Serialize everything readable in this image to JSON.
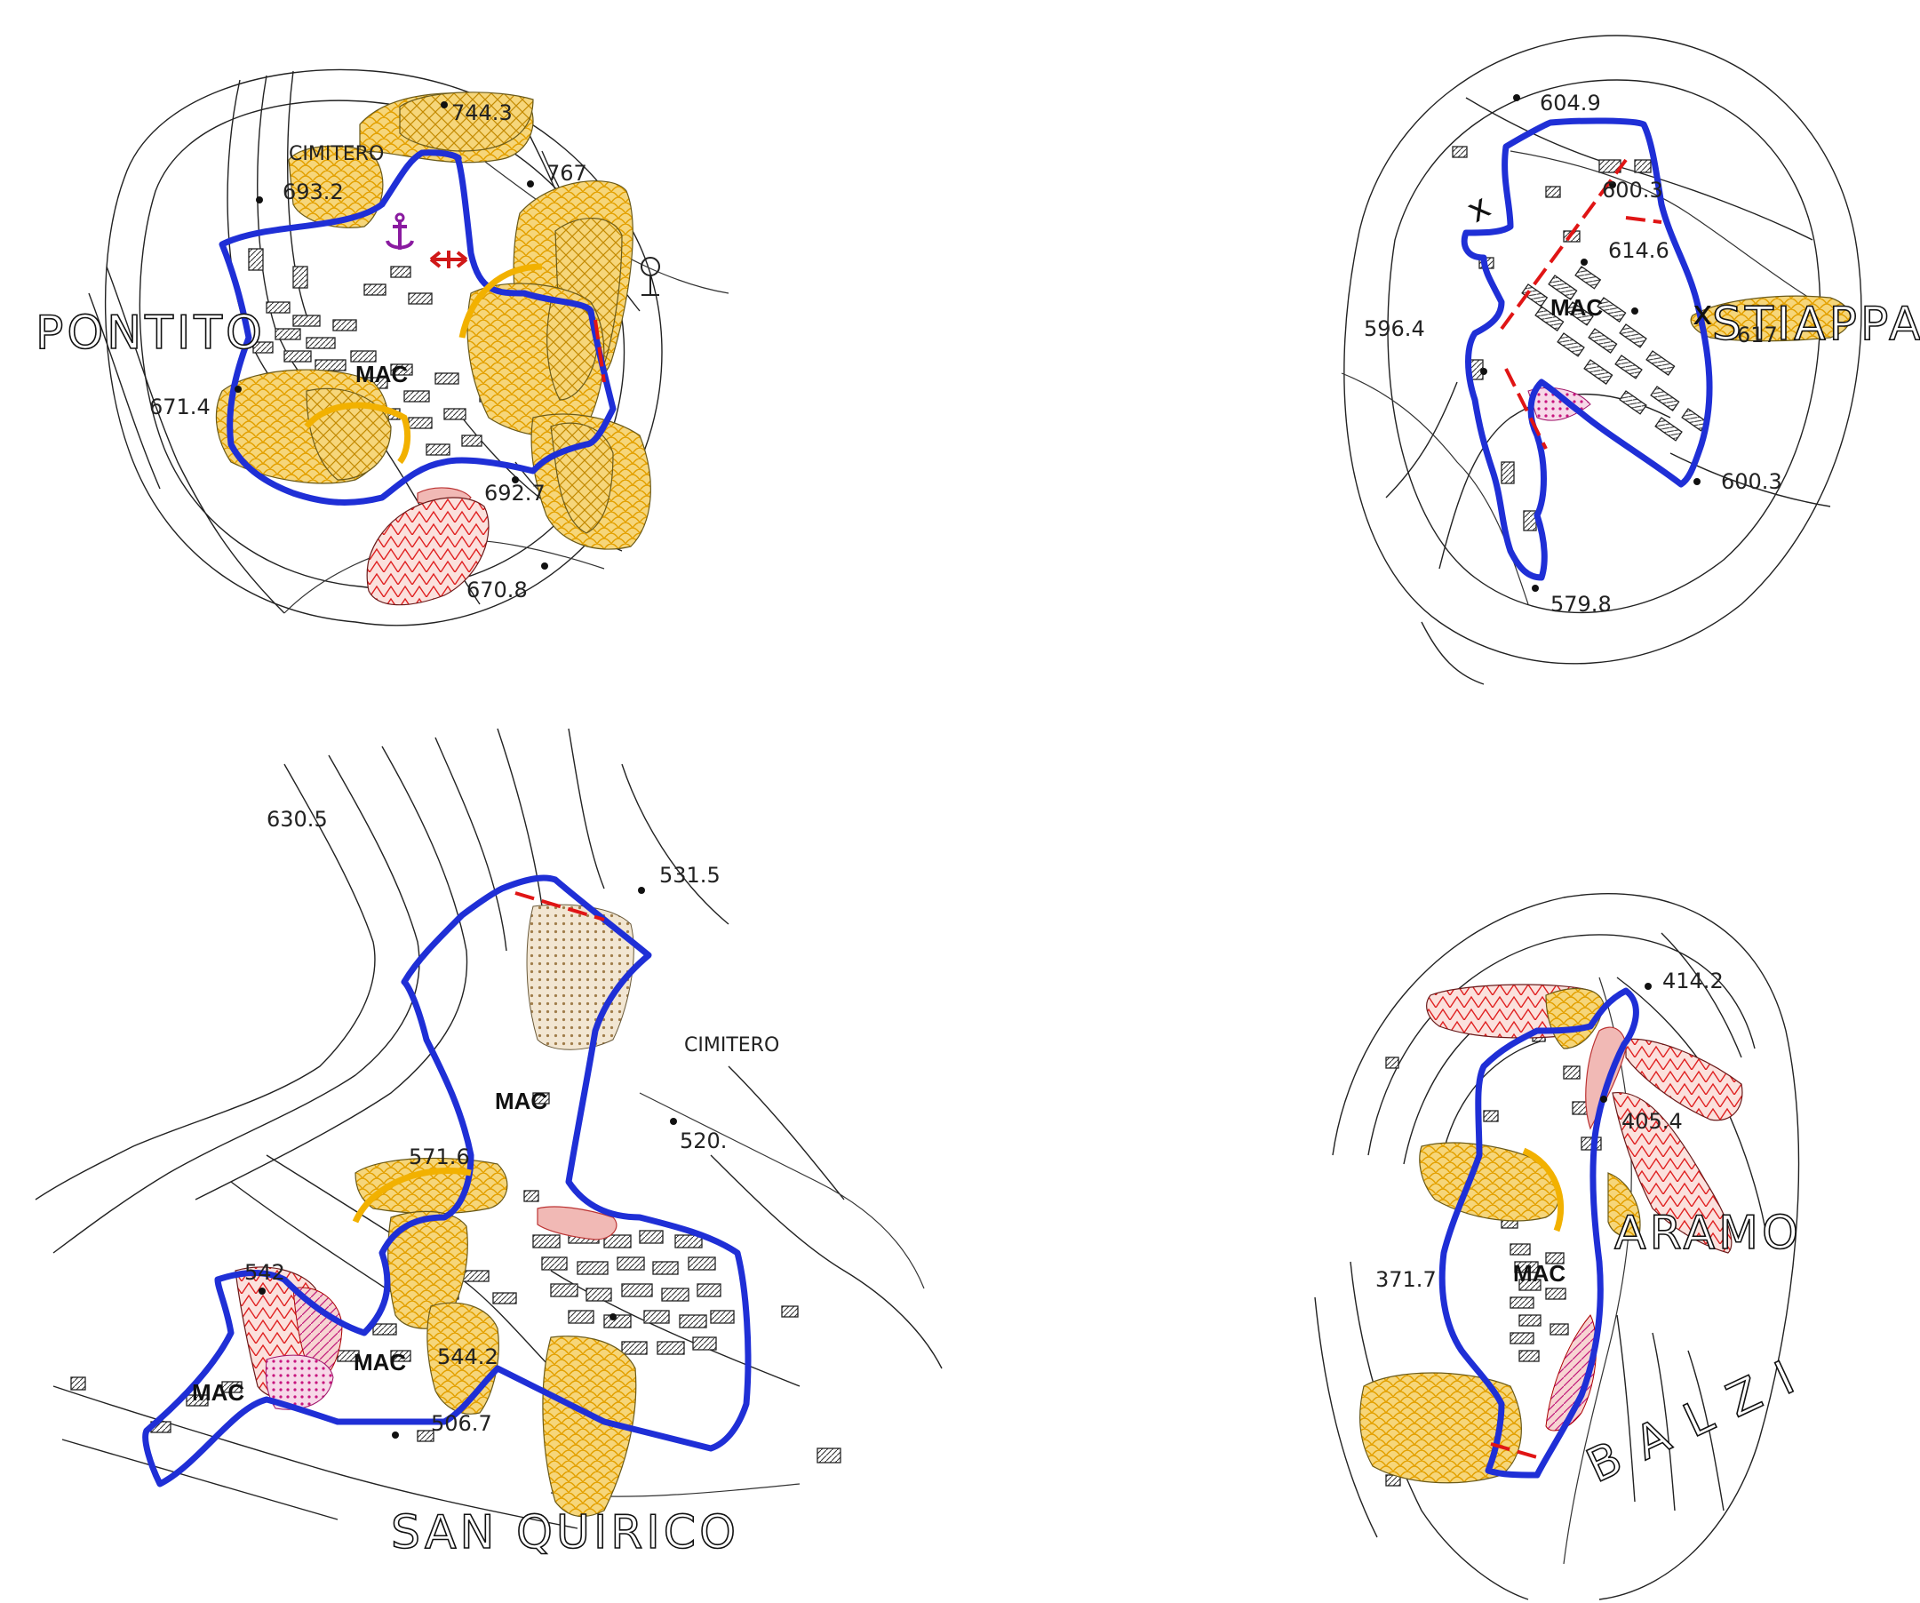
{
  "colors": {
    "boundary": "#1f2fd6",
    "dashed_line": "#e01515",
    "yellow_zone": "#f6cf5e",
    "red_zone": "#e02020",
    "pink_zone": "#f1b9b5",
    "magenta_dots": "#c8157e",
    "anchor": "#8a1ba0",
    "orange_arrow": "#f2b100"
  },
  "villages": {
    "pontito": {
      "name": "PONTITO",
      "cemetery": "CIMITERO",
      "mac": "MAC",
      "spots": [
        "744.3",
        "693.2",
        "767",
        "671.4",
        "692.7",
        "670.8"
      ],
      "icons": [
        "anchor-icon",
        "double-arrow-icon",
        "tower-icon"
      ]
    },
    "stiappa": {
      "name": "STIAPPA",
      "mac": "MAC",
      "spots": [
        "604.9",
        "600.3",
        "614.6",
        "596.4",
        "617",
        "600.3",
        "579.8"
      ]
    },
    "san_quirico": {
      "name": "SAN QUIRICO",
      "cemetery": "CIMITERO",
      "mac_labels": [
        "MAC",
        "MAC",
        "MAC"
      ],
      "spots": [
        "630.5",
        "531.5",
        "520.",
        "571.6",
        "542",
        "544.2",
        "506.7"
      ]
    },
    "aramo": {
      "name": "ARAMO",
      "place": "B A L Z I",
      "mac": "MAC",
      "spots": [
        "414.2",
        "405.4",
        "371.7"
      ]
    }
  }
}
